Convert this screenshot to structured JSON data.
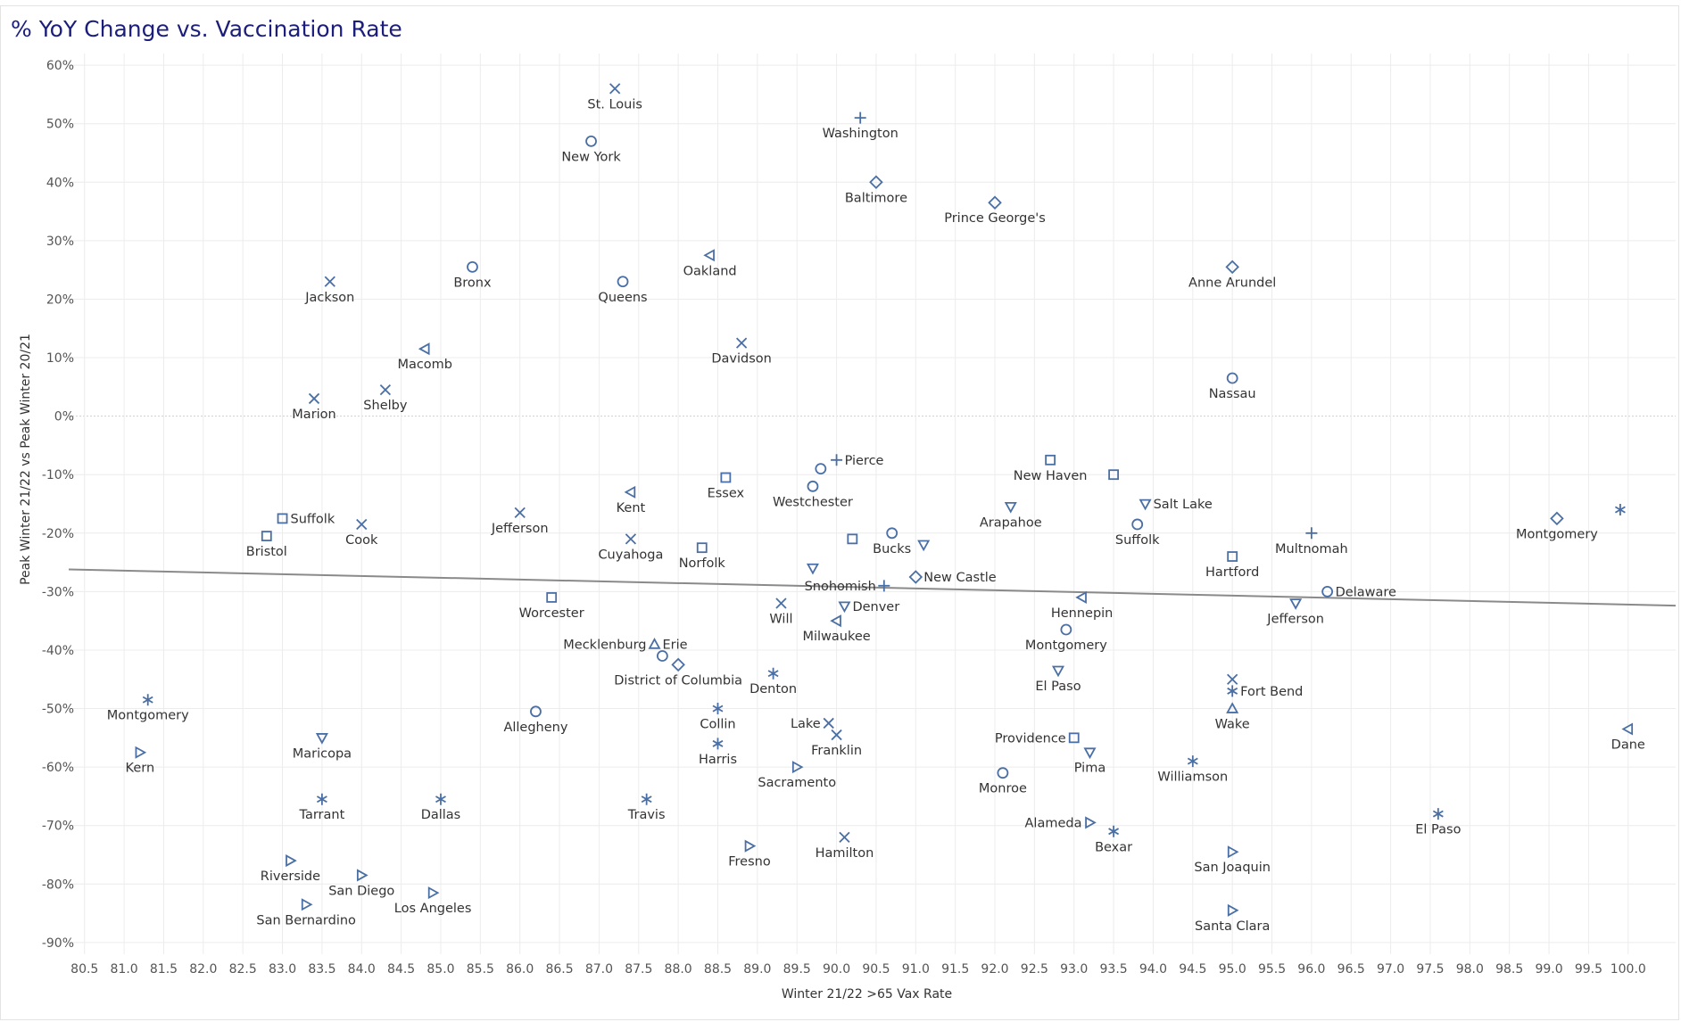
{
  "chart_data": {
    "type": "scatter",
    "title": "% YoY Change vs. Vaccination Rate",
    "xlabel": "Winter 21/22 >65 Vax Rate",
    "ylabel": "Peak Winter 21/22 vs Peak Winter 20/21",
    "xlim": [
      80.3,
      100.6
    ],
    "ylim": [
      -92,
      62
    ],
    "xticks": [
      "80.5",
      "81.0",
      "81.5",
      "82.0",
      "82.5",
      "83.0",
      "83.5",
      "84.0",
      "84.5",
      "85.0",
      "85.5",
      "86.0",
      "86.5",
      "87.0",
      "87.5",
      "88.0",
      "88.5",
      "89.0",
      "89.5",
      "90.0",
      "90.5",
      "91.0",
      "91.5",
      "92.0",
      "92.5",
      "93.0",
      "93.5",
      "94.0",
      "94.5",
      "95.0",
      "95.5",
      "96.0",
      "96.5",
      "97.0",
      "97.5",
      "98.0",
      "98.5",
      "99.0",
      "99.5",
      "100.0"
    ],
    "yticks": [
      {
        "v": 60,
        "label": "60%"
      },
      {
        "v": 50,
        "label": "50%"
      },
      {
        "v": 40,
        "label": "40%"
      },
      {
        "v": 30,
        "label": "30%"
      },
      {
        "v": 20,
        "label": "20%"
      },
      {
        "v": 10,
        "label": "10%"
      },
      {
        "v": 0,
        "label": "0%"
      },
      {
        "v": -10,
        "label": "-10%"
      },
      {
        "v": -20,
        "label": "-20%"
      },
      {
        "v": -30,
        "label": "-30%"
      },
      {
        "v": -40,
        "label": "-40%"
      },
      {
        "v": -50,
        "label": "-50%"
      },
      {
        "v": -60,
        "label": "-60%"
      },
      {
        "v": -70,
        "label": "-70%"
      },
      {
        "v": -80,
        "label": "-80%"
      },
      {
        "v": -90,
        "label": "-90%"
      }
    ],
    "grid": true,
    "trend_line": {
      "x": [
        80.3,
        100.6
      ],
      "y": [
        -26.2,
        -32.4
      ]
    },
    "points": [
      {
        "label": "St. Louis",
        "x": 87.2,
        "y": 56,
        "shape": "x",
        "pos": "below"
      },
      {
        "label": "Washington",
        "x": 90.3,
        "y": 51,
        "shape": "plus",
        "pos": "below"
      },
      {
        "label": "New York",
        "x": 86.9,
        "y": 47,
        "shape": "circle",
        "pos": "below"
      },
      {
        "label": "Baltimore",
        "x": 90.5,
        "y": 40,
        "shape": "diamond",
        "pos": "below"
      },
      {
        "label": "Prince George's",
        "x": 92.0,
        "y": 36.5,
        "shape": "diamond",
        "pos": "below"
      },
      {
        "label": "Oakland",
        "x": 88.4,
        "y": 27.5,
        "shape": "tri-left",
        "pos": "below"
      },
      {
        "label": "Anne Arundel",
        "x": 95.0,
        "y": 25.5,
        "shape": "diamond",
        "pos": "below"
      },
      {
        "label": "Bronx",
        "x": 85.4,
        "y": 25.5,
        "shape": "circle",
        "pos": "below"
      },
      {
        "label": "Jackson",
        "x": 83.6,
        "y": 23,
        "shape": "x",
        "pos": "below"
      },
      {
        "label": "Queens",
        "x": 87.3,
        "y": 23,
        "shape": "circle",
        "pos": "below"
      },
      {
        "label": "Davidson",
        "x": 88.8,
        "y": 12.5,
        "shape": "x",
        "pos": "below"
      },
      {
        "label": "Macomb",
        "x": 84.8,
        "y": 11.5,
        "shape": "tri-left",
        "pos": "below"
      },
      {
        "label": "Nassau",
        "x": 95.0,
        "y": 6.5,
        "shape": "circle",
        "pos": "below"
      },
      {
        "label": "Shelby",
        "x": 84.3,
        "y": 4.5,
        "shape": "x",
        "pos": "below"
      },
      {
        "label": "Marion",
        "x": 83.4,
        "y": 3,
        "shape": "x",
        "pos": "below"
      },
      {
        "label": "Pierce",
        "x": 90.0,
        "y": -7.5,
        "shape": "plus",
        "pos": "right"
      },
      {
        "label": "",
        "x": 89.8,
        "y": -9,
        "shape": "circle",
        "pos": "none"
      },
      {
        "label": "New Haven",
        "x": 92.7,
        "y": -7.5,
        "shape": "square",
        "pos": "below"
      },
      {
        "label": "",
        "x": 93.5,
        "y": -10,
        "shape": "square",
        "pos": "none"
      },
      {
        "label": "Essex",
        "x": 88.6,
        "y": -10.5,
        "shape": "square",
        "pos": "below"
      },
      {
        "label": "Westchester",
        "x": 89.7,
        "y": -12,
        "shape": "circle",
        "pos": "below"
      },
      {
        "label": "Kent",
        "x": 87.4,
        "y": -13,
        "shape": "tri-left",
        "pos": "below"
      },
      {
        "label": "Salt Lake",
        "x": 93.9,
        "y": -15,
        "shape": "tri-down",
        "pos": "right"
      },
      {
        "label": "Arapahoe",
        "x": 92.2,
        "y": -15.5,
        "shape": "tri-down",
        "pos": "below"
      },
      {
        "label": "Jefferson",
        "x": 86.0,
        "y": -16.5,
        "shape": "x",
        "pos": "below"
      },
      {
        "label": "",
        "x": 99.9,
        "y": -16,
        "shape": "asterisk",
        "pos": "none"
      },
      {
        "label": "Suffolk",
        "x": 83.0,
        "y": -17.5,
        "shape": "square",
        "pos": "right"
      },
      {
        "label": "Montgomery",
        "x": 99.1,
        "y": -17.5,
        "shape": "diamond",
        "pos": "below"
      },
      {
        "label": "Cook",
        "x": 84.0,
        "y": -18.5,
        "shape": "x",
        "pos": "below"
      },
      {
        "label": "Suffolk",
        "x": 93.8,
        "y": -18.5,
        "shape": "circle",
        "pos": "below"
      },
      {
        "label": "Multnomah",
        "x": 96.0,
        "y": -20,
        "shape": "plus",
        "pos": "below"
      },
      {
        "label": "Bucks",
        "x": 90.7,
        "y": -20,
        "shape": "circle",
        "pos": "below"
      },
      {
        "label": "Bristol",
        "x": 82.8,
        "y": -20.5,
        "shape": "square",
        "pos": "below"
      },
      {
        "label": "",
        "x": 90.2,
        "y": -21,
        "shape": "square",
        "pos": "none"
      },
      {
        "label": "Cuyahoga",
        "x": 87.4,
        "y": -21,
        "shape": "x",
        "pos": "below"
      },
      {
        "label": "",
        "x": 91.1,
        "y": -22,
        "shape": "tri-down",
        "pos": "none"
      },
      {
        "label": "Norfolk",
        "x": 88.3,
        "y": -22.5,
        "shape": "square",
        "pos": "below"
      },
      {
        "label": "Hartford",
        "x": 95.0,
        "y": -24,
        "shape": "square",
        "pos": "below"
      },
      {
        "label": "",
        "x": 89.7,
        "y": -26,
        "shape": "tri-down",
        "pos": "none"
      },
      {
        "label": "New Castle",
        "x": 91.0,
        "y": -27.5,
        "shape": "diamond",
        "pos": "right"
      },
      {
        "label": "Snohomish",
        "x": 90.6,
        "y": -29,
        "shape": "plus",
        "pos": "left"
      },
      {
        "label": "Delaware",
        "x": 96.2,
        "y": -30,
        "shape": "circle",
        "pos": "right"
      },
      {
        "label": "Worcester",
        "x": 86.4,
        "y": -31,
        "shape": "square",
        "pos": "below"
      },
      {
        "label": "Hennepin",
        "x": 93.1,
        "y": -31,
        "shape": "tri-left",
        "pos": "below"
      },
      {
        "label": "Jefferson",
        "x": 95.8,
        "y": -32,
        "shape": "tri-down",
        "pos": "below"
      },
      {
        "label": "Will",
        "x": 89.3,
        "y": -32,
        "shape": "x",
        "pos": "below"
      },
      {
        "label": "Denver",
        "x": 90.1,
        "y": -32.5,
        "shape": "tri-down",
        "pos": "right"
      },
      {
        "label": "Milwaukee",
        "x": 90.0,
        "y": -35,
        "shape": "tri-left",
        "pos": "below"
      },
      {
        "label": "Montgomery",
        "x": 92.9,
        "y": -36.5,
        "shape": "circle",
        "pos": "below"
      },
      {
        "label": "Erie",
        "x": 87.7,
        "y": -39,
        "shape": "tri-up",
        "pos": "right"
      },
      {
        "label": "Mecklenburg",
        "x": 87.7,
        "y": -39,
        "shape": "",
        "pos": "left"
      },
      {
        "label": "",
        "x": 87.8,
        "y": -41,
        "shape": "circle",
        "pos": "none"
      },
      {
        "label": "District of Columbia",
        "x": 88.0,
        "y": -42.5,
        "shape": "diamond",
        "pos": "below"
      },
      {
        "label": "El Paso",
        "x": 92.8,
        "y": -43.5,
        "shape": "tri-down",
        "pos": "below"
      },
      {
        "label": "Denton",
        "x": 89.2,
        "y": -44,
        "shape": "asterisk",
        "pos": "below"
      },
      {
        "label": "",
        "x": 95.0,
        "y": -45,
        "shape": "x",
        "pos": "none"
      },
      {
        "label": "Fort Bend",
        "x": 95.0,
        "y": -47,
        "shape": "asterisk",
        "pos": "right"
      },
      {
        "label": "Montgomery",
        "x": 81.3,
        "y": -48.5,
        "shape": "asterisk",
        "pos": "below"
      },
      {
        "label": "Wake",
        "x": 95.0,
        "y": -50,
        "shape": "tri-up",
        "pos": "below"
      },
      {
        "label": "Allegheny",
        "x": 86.2,
        "y": -50.5,
        "shape": "circle",
        "pos": "below"
      },
      {
        "label": "Collin",
        "x": 88.5,
        "y": -50,
        "shape": "asterisk",
        "pos": "below"
      },
      {
        "label": "Lake",
        "x": 89.9,
        "y": -52.5,
        "shape": "x",
        "pos": "left"
      },
      {
        "label": "Dane",
        "x": 100.0,
        "y": -53.5,
        "shape": "tri-left",
        "pos": "below"
      },
      {
        "label": "Franklin",
        "x": 90.0,
        "y": -54.5,
        "shape": "x",
        "pos": "below"
      },
      {
        "label": "Providence",
        "x": 93.0,
        "y": -55,
        "shape": "square",
        "pos": "left"
      },
      {
        "label": "Maricopa",
        "x": 83.5,
        "y": -55,
        "shape": "tri-down",
        "pos": "below"
      },
      {
        "label": "Harris",
        "x": 88.5,
        "y": -56,
        "shape": "asterisk",
        "pos": "below"
      },
      {
        "label": "Kern",
        "x": 81.2,
        "y": -57.5,
        "shape": "tri-right",
        "pos": "below"
      },
      {
        "label": "Pima",
        "x": 93.2,
        "y": -57.5,
        "shape": "tri-down",
        "pos": "below"
      },
      {
        "label": "Williamson",
        "x": 94.5,
        "y": -59,
        "shape": "asterisk",
        "pos": "below"
      },
      {
        "label": "Sacramento",
        "x": 89.5,
        "y": -60,
        "shape": "tri-right",
        "pos": "below"
      },
      {
        "label": "Monroe",
        "x": 92.1,
        "y": -61,
        "shape": "circle",
        "pos": "below"
      },
      {
        "label": "Tarrant",
        "x": 83.5,
        "y": -65.5,
        "shape": "asterisk",
        "pos": "below"
      },
      {
        "label": "Dallas",
        "x": 85.0,
        "y": -65.5,
        "shape": "asterisk",
        "pos": "below"
      },
      {
        "label": "Travis",
        "x": 87.6,
        "y": -65.5,
        "shape": "asterisk",
        "pos": "below"
      },
      {
        "label": "El Paso",
        "x": 97.6,
        "y": -68,
        "shape": "asterisk",
        "pos": "below"
      },
      {
        "label": "Alameda",
        "x": 93.2,
        "y": -69.5,
        "shape": "tri-right",
        "pos": "left"
      },
      {
        "label": "Bexar",
        "x": 93.5,
        "y": -71,
        "shape": "asterisk",
        "pos": "below"
      },
      {
        "label": "Hamilton",
        "x": 90.1,
        "y": -72,
        "shape": "x",
        "pos": "below"
      },
      {
        "label": "Fresno",
        "x": 88.9,
        "y": -73.5,
        "shape": "tri-right",
        "pos": "below"
      },
      {
        "label": "San Joaquin",
        "x": 95.0,
        "y": -74.5,
        "shape": "tri-right",
        "pos": "below"
      },
      {
        "label": "Riverside",
        "x": 83.1,
        "y": -76,
        "shape": "tri-right",
        "pos": "below"
      },
      {
        "label": "San Diego",
        "x": 84.0,
        "y": -78.5,
        "shape": "tri-right",
        "pos": "below"
      },
      {
        "label": "Los Angeles",
        "x": 84.9,
        "y": -81.5,
        "shape": "tri-right",
        "pos": "below"
      },
      {
        "label": "San Bernardino",
        "x": 83.3,
        "y": -83.5,
        "shape": "tri-right",
        "pos": "below"
      },
      {
        "label": "Santa Clara",
        "x": 95.0,
        "y": -84.5,
        "shape": "tri-right",
        "pos": "below"
      }
    ]
  }
}
